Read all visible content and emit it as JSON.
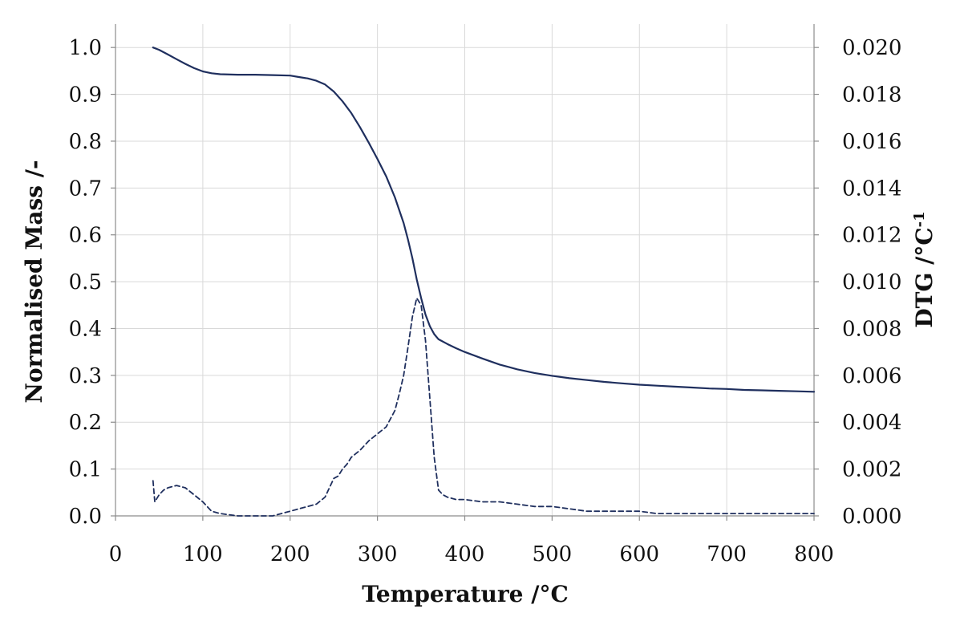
{
  "chart_data": {
    "type": "line",
    "xlabel": "Temperature /°C",
    "ylabel": "Normalised Mass /-",
    "y2label_main": "DTG  /°C",
    "y2label_sup": "-1",
    "xlim": [
      0,
      800
    ],
    "ylim": [
      0,
      1.05
    ],
    "y2lim": [
      0,
      0.021
    ],
    "x_ticks": [
      "0",
      "100",
      "200",
      "300",
      "400",
      "500",
      "600",
      "700",
      "800"
    ],
    "y_ticks": [
      "0.0",
      "0.1",
      "0.2",
      "0.3",
      "0.4",
      "0.5",
      "0.6",
      "0.7",
      "0.8",
      "0.9",
      "1.0"
    ],
    "y2_ticks": [
      "0.000",
      "0.002",
      "0.004",
      "0.006",
      "0.008",
      "0.010",
      "0.012",
      "0.014",
      "0.016",
      "0.018",
      "0.020"
    ],
    "grid": true,
    "colors": {
      "line": "#1f2f5e",
      "grid": "#d9d9d9",
      "axis": "#8c8c8c"
    },
    "series": [
      {
        "axis": "left",
        "style": "solid",
        "x": [
          43,
          50,
          60,
          70,
          80,
          90,
          100,
          110,
          120,
          140,
          160,
          180,
          200,
          210,
          220,
          230,
          240,
          250,
          260,
          270,
          280,
          290,
          300,
          310,
          320,
          330,
          335,
          340,
          345,
          350,
          355,
          360,
          365,
          370,
          380,
          390,
          400,
          420,
          440,
          460,
          480,
          500,
          520,
          540,
          560,
          580,
          600,
          620,
          640,
          660,
          680,
          700,
          720,
          740,
          760,
          780,
          800
        ],
        "values": [
          1.0,
          0.995,
          0.985,
          0.975,
          0.965,
          0.956,
          0.949,
          0.945,
          0.943,
          0.942,
          0.942,
          0.941,
          0.94,
          0.937,
          0.934,
          0.929,
          0.921,
          0.906,
          0.885,
          0.86,
          0.83,
          0.797,
          0.762,
          0.725,
          0.68,
          0.625,
          0.59,
          0.55,
          0.505,
          0.465,
          0.43,
          0.405,
          0.388,
          0.377,
          0.367,
          0.358,
          0.35,
          0.336,
          0.323,
          0.313,
          0.305,
          0.299,
          0.294,
          0.29,
          0.286,
          0.283,
          0.28,
          0.278,
          0.276,
          0.274,
          0.272,
          0.271,
          0.269,
          0.268,
          0.267,
          0.266,
          0.265
        ]
      },
      {
        "axis": "right",
        "style": "dashed",
        "x": [
          43,
          45,
          50,
          55,
          60,
          70,
          80,
          90,
          100,
          110,
          120,
          140,
          160,
          180,
          190,
          200,
          210,
          220,
          230,
          240,
          245,
          250,
          255,
          260,
          265,
          270,
          280,
          290,
          300,
          310,
          320,
          325,
          330,
          335,
          340,
          345,
          350,
          355,
          360,
          365,
          370,
          375,
          380,
          390,
          400,
          420,
          440,
          460,
          480,
          500,
          520,
          540,
          560,
          580,
          600,
          620,
          640,
          660,
          680,
          700,
          720,
          740,
          760,
          780,
          800
        ],
        "values": [
          0.0015,
          0.0006,
          0.0009,
          0.0011,
          0.0012,
          0.0013,
          0.0012,
          0.0009,
          0.0006,
          0.0002,
          0.0001,
          0.0,
          0.0,
          0.0,
          0.0001,
          0.0002,
          0.0003,
          0.0004,
          0.0005,
          0.0008,
          0.0012,
          0.0016,
          0.0017,
          0.002,
          0.0022,
          0.0025,
          0.0028,
          0.0032,
          0.0035,
          0.0038,
          0.0045,
          0.0052,
          0.006,
          0.0072,
          0.0085,
          0.0093,
          0.009,
          0.0075,
          0.005,
          0.0025,
          0.0011,
          0.0009,
          0.0008,
          0.0007,
          0.0007,
          0.0006,
          0.0006,
          0.0005,
          0.0004,
          0.0004,
          0.0003,
          0.0002,
          0.0002,
          0.0002,
          0.0002,
          0.0001,
          0.0001,
          0.0001,
          0.0001,
          0.0001,
          0.0001,
          0.0001,
          0.0001,
          0.0001,
          0.0001
        ]
      }
    ]
  }
}
